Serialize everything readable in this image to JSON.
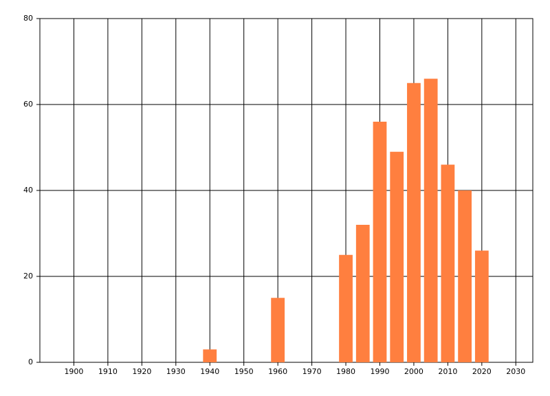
{
  "chart_data": {
    "type": "bar",
    "x": [
      1940,
      1960,
      1980,
      1985,
      1990,
      1995,
      2000,
      2005,
      2010,
      2015,
      2020
    ],
    "values": [
      3,
      15,
      25,
      32,
      56,
      49,
      65,
      66,
      46,
      40,
      26
    ],
    "color": "#ff7f3f",
    "xlim": [
      1890,
      2035
    ],
    "xticks": [
      1900,
      1910,
      1920,
      1930,
      1940,
      1950,
      1960,
      1970,
      1980,
      1990,
      2000,
      2010,
      2020,
      2030
    ],
    "ylim": [
      0,
      80
    ],
    "yticks": [
      0,
      20,
      40,
      60,
      80
    ],
    "grid": true
  }
}
